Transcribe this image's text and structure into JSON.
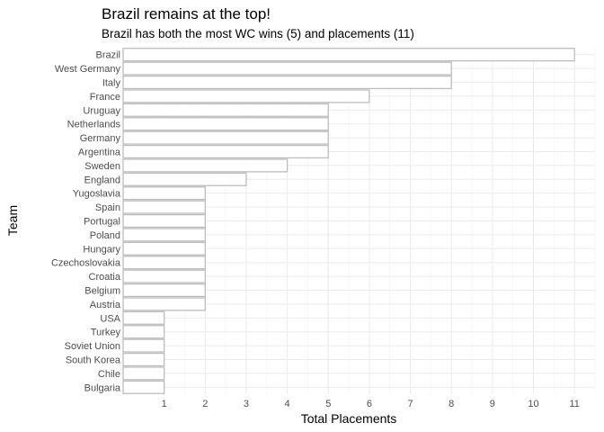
{
  "chart_data": {
    "type": "bar",
    "orientation": "horizontal",
    "title": "Brazil remains at the top!",
    "subtitle": "Brazil has both the most WC wins (5) and placements (11)",
    "xlabel": "Total Placements",
    "ylabel": "Team",
    "xlim": [
      0,
      11.5
    ],
    "xticks": [
      1,
      2,
      3,
      4,
      5,
      6,
      7,
      8,
      9,
      10,
      11
    ],
    "grid": true,
    "legend": "none",
    "bar_fill": "#ffffff",
    "bar_outline": "#bdbdbd",
    "categories": [
      "Brazil",
      "West Germany",
      "Italy",
      "France",
      "Uruguay",
      "Netherlands",
      "Germany",
      "Argentina",
      "Sweden",
      "England",
      "Yugoslavia",
      "Spain",
      "Portugal",
      "Poland",
      "Hungary",
      "Czechoslovakia",
      "Croatia",
      "Belgium",
      "Austria",
      "USA",
      "Turkey",
      "Soviet Union",
      "South Korea",
      "Chile",
      "Bulgaria"
    ],
    "values": [
      11,
      8,
      8,
      6,
      5,
      5,
      5,
      5,
      4,
      3,
      2,
      2,
      2,
      2,
      2,
      2,
      2,
      2,
      2,
      1,
      1,
      1,
      1,
      1,
      1
    ]
  }
}
